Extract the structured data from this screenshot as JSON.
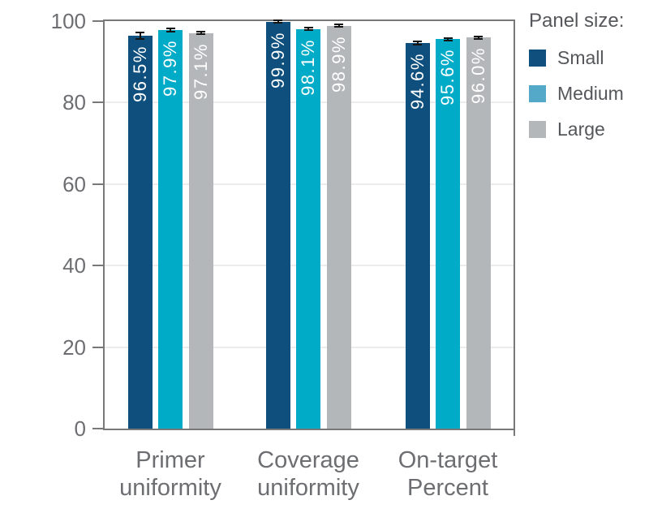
{
  "chart_data": {
    "type": "bar",
    "title": "",
    "xlabel": "",
    "ylabel": "",
    "categories": [
      [
        "Primer",
        "uniformity"
      ],
      [
        "Coverage",
        "uniformity"
      ],
      [
        "On-target",
        "Percent"
      ]
    ],
    "series": [
      {
        "name": "Small",
        "color": "#0e4f7d",
        "legend_color": "#0e4f7d",
        "values": [
          96.5,
          99.9,
          94.6
        ],
        "labels": [
          "96.5%",
          "99.9%",
          "94.6%"
        ],
        "errors": [
          1.0,
          0.5,
          0.6
        ]
      },
      {
        "name": "Medium",
        "color": "#00abc8",
        "legend_color": "#54a9c8",
        "values": [
          97.9,
          98.1,
          95.6
        ],
        "labels": [
          "97.9%",
          "98.1%",
          "95.6%"
        ],
        "errors": [
          0.6,
          0.5,
          0.5
        ]
      },
      {
        "name": "Large",
        "color": "#b4b7b9",
        "legend_color": "#b4b7b9",
        "values": [
          97.1,
          98.9,
          96.0
        ],
        "labels": [
          "97.1%",
          "98.9%",
          "96.0%"
        ],
        "errors": [
          0.5,
          0.5,
          0.5
        ]
      }
    ],
    "ylim": [
      0,
      100
    ],
    "yticks": [
      0,
      20,
      40,
      60,
      80,
      100
    ],
    "grid": true,
    "legend_position": "right",
    "value_labels_inside_bars": true,
    "error_bars": true
  },
  "legend": {
    "title": "Panel size:",
    "items": [
      {
        "label": "Small",
        "color": "#0e4f7d"
      },
      {
        "label": "Medium",
        "color": "#54a9c8"
      },
      {
        "label": "Large",
        "color": "#b4b7b9"
      }
    ]
  },
  "colors": {
    "axis": "#76787a",
    "tick_label": "#6d6e71",
    "gridline": "#ececec",
    "value_label": "#ffffff",
    "error_bar": "#141414",
    "background": "#ffffff"
  }
}
